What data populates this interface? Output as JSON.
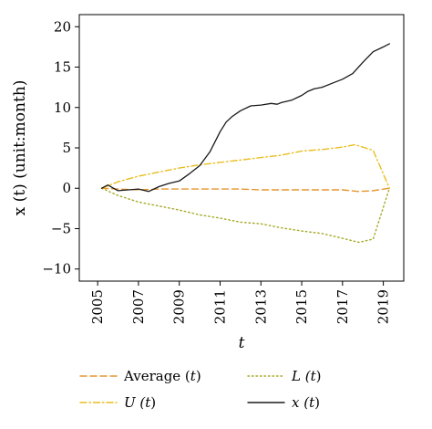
{
  "chart_data": {
    "type": "line",
    "xlabel": "t",
    "ylabel": "x (t) (unit:month)",
    "xlim": [
      2004.1,
      2020.0
    ],
    "ylim": [
      -11.5,
      21.5
    ],
    "xticks": [
      "2005",
      "2007",
      "2009",
      "2011",
      "2013",
      "2015",
      "2017",
      "2019"
    ],
    "yticks": [
      "20",
      "15",
      "10",
      "5",
      "0",
      "−5",
      "−10"
    ],
    "grid": false,
    "legend_position": "bottom",
    "series": [
      {
        "name": "Average (t)",
        "color": "#e5952f",
        "dash": "dashed",
        "x": [
          2005.2,
          2006,
          2007,
          2008,
          2009,
          2010,
          2011,
          2012,
          2013,
          2014,
          2015,
          2016,
          2017,
          2017.8,
          2018.5,
          2019.3
        ],
        "y": [
          0,
          -0.1,
          -0.2,
          -0.1,
          -0.1,
          -0.1,
          -0.1,
          -0.1,
          -0.2,
          -0.2,
          -0.2,
          -0.2,
          -0.2,
          -0.4,
          -0.3,
          0
        ]
      },
      {
        "name": "U (t)",
        "color": "#e9be20",
        "dash": "dashdot",
        "x": [
          2005.2,
          2006,
          2007,
          2008,
          2009,
          2010,
          2011,
          2012,
          2013,
          2014,
          2015,
          2016,
          2017,
          2017.6,
          2018.5,
          2019.3
        ],
        "y": [
          0,
          0.8,
          1.5,
          2.0,
          2.5,
          2.9,
          3.2,
          3.5,
          3.8,
          4.1,
          4.6,
          4.8,
          5.1,
          5.4,
          4.7,
          0
        ]
      },
      {
        "name": "L (t)",
        "color": "#a6a928",
        "dash": "dotted",
        "x": [
          2005.2,
          2006,
          2007,
          2008,
          2009,
          2010,
          2011,
          2012,
          2013,
          2014,
          2015,
          2016,
          2017,
          2017.8,
          2018.5,
          2019.3
        ],
        "y": [
          0,
          -0.9,
          -1.7,
          -2.2,
          -2.7,
          -3.3,
          -3.7,
          -4.2,
          -4.4,
          -4.9,
          -5.3,
          -5.6,
          -6.2,
          -6.7,
          -6.3,
          0
        ]
      },
      {
        "name": "x (t)",
        "color": "#1a1a1a",
        "dash": "solid",
        "x": [
          2005.2,
          2005.5,
          2006,
          2006.5,
          2007,
          2007.5,
          2008,
          2008.5,
          2009,
          2009.5,
          2010,
          2010.5,
          2011,
          2011.3,
          2011.6,
          2012,
          2012.5,
          2013,
          2013.5,
          2013.8,
          2014,
          2014.5,
          2015,
          2015.3,
          2015.6,
          2016,
          2016.5,
          2017,
          2017.5,
          2018,
          2018.5,
          2019,
          2019.3
        ],
        "y": [
          0,
          0.4,
          -0.3,
          -0.2,
          -0.1,
          -0.4,
          0.2,
          0.6,
          0.9,
          1.8,
          2.8,
          4.5,
          7.0,
          8.2,
          8.9,
          9.6,
          10.2,
          10.3,
          10.5,
          10.4,
          10.6,
          10.9,
          11.5,
          12.0,
          12.3,
          12.5,
          13.0,
          13.5,
          14.2,
          15.6,
          16.9,
          17.5,
          17.9
        ]
      }
    ]
  }
}
